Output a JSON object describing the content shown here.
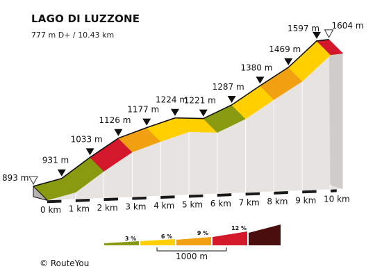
{
  "title": "LAGO DI LUZZONE",
  "subtitle": "777 m D+ / 10.43 km",
  "credit_symbol": "©",
  "credit_text": "RouteYou",
  "chart_data": {
    "type": "area",
    "title": "LAGO DI LUZZONE",
    "subtitle": "777 m D+ / 10.43 km",
    "xlabel": "",
    "ylabel": "",
    "x_unit": "km",
    "y_unit": "m",
    "x_ticks": [
      "0 km",
      "1 km",
      "2 km",
      "3 km",
      "4 km",
      "5 km",
      "6 km",
      "7 km",
      "8 km",
      "9 km",
      "10 km"
    ],
    "points": [
      {
        "km": 0,
        "elev": 893,
        "label": "893 m",
        "marker": "start"
      },
      {
        "km": 1,
        "elev": 931,
        "label": "931 m",
        "marker": "km"
      },
      {
        "km": 2,
        "elev": 1033,
        "label": "1033 m",
        "marker": "km"
      },
      {
        "km": 3,
        "elev": 1126,
        "label": "1126 m",
        "marker": "km"
      },
      {
        "km": 4,
        "elev": 1177,
        "label": "1177 m",
        "marker": "km"
      },
      {
        "km": 5,
        "elev": 1224,
        "label": "1224 m",
        "marker": "km"
      },
      {
        "km": 6,
        "elev": 1221,
        "label": "1221 m",
        "marker": "km"
      },
      {
        "km": 7,
        "elev": 1287,
        "label": "1287 m",
        "marker": "km"
      },
      {
        "km": 8,
        "elev": 1380,
        "label": "1380 m",
        "marker": "km"
      },
      {
        "km": 9,
        "elev": 1469,
        "label": "1469 m",
        "marker": "km"
      },
      {
        "km": 10,
        "elev": 1597,
        "label": "1597 m",
        "marker": "km"
      },
      {
        "km": 10.43,
        "elev": 1604,
        "label": "1604 m",
        "marker": "end"
      }
    ],
    "segment_grade_classes": [
      3,
      3,
      12,
      9,
      6,
      6,
      3,
      6,
      9,
      6,
      12,
      3
    ],
    "legend": {
      "grades": [
        "3 %",
        "6 %",
        "9 %",
        "12 %"
      ],
      "scale_label": "1000 m",
      "colors": [
        "#8a9a10",
        "#ffcf00",
        "#f0a010",
        "#d3182b",
        "#4a0e0e"
      ]
    },
    "colors": {
      "side_wall": "#e7e3e1",
      "base_band": "#b5b2b0",
      "strip": "#1a1a1a",
      "outline": "#111111"
    }
  }
}
